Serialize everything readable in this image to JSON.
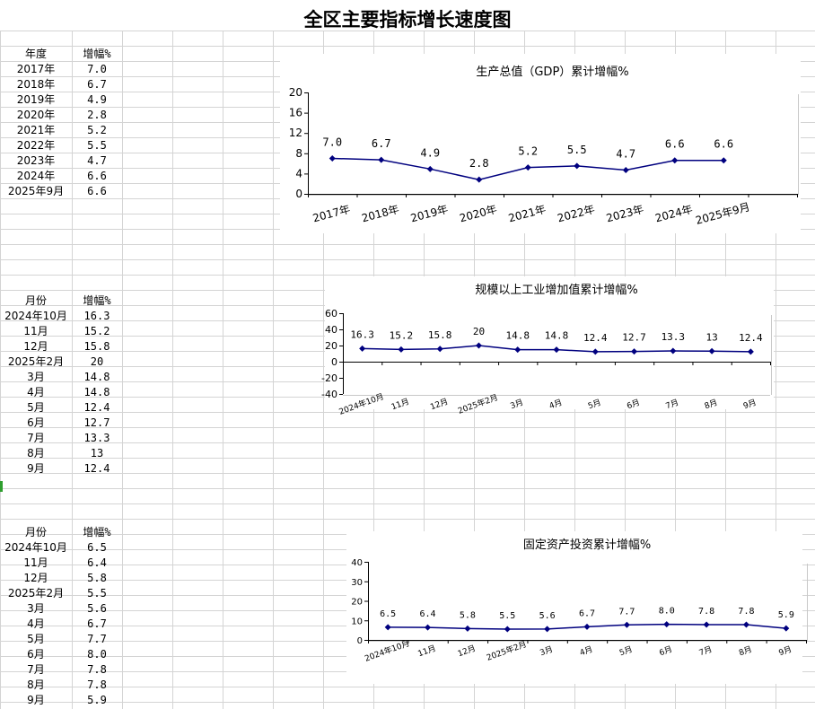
{
  "sheet": {
    "title": "全区主要指标增长速度图"
  },
  "table1": {
    "header": [
      "年度",
      "增幅%"
    ],
    "rows": [
      [
        "2017年",
        "7.0"
      ],
      [
        "2018年",
        "6.7"
      ],
      [
        "2019年",
        "4.9"
      ],
      [
        "2020年",
        "2.8"
      ],
      [
        "2021年",
        "5.2"
      ],
      [
        "2022年",
        "5.5"
      ],
      [
        "2023年",
        "4.7"
      ],
      [
        "2024年",
        "6.6"
      ],
      [
        "2025年9月",
        "6.6"
      ]
    ]
  },
  "table2": {
    "header": [
      "月份",
      "增幅%"
    ],
    "rows": [
      [
        "2024年10月",
        "16.3"
      ],
      [
        "11月",
        "15.2"
      ],
      [
        "12月",
        "15.8"
      ],
      [
        "2025年2月",
        "20"
      ],
      [
        "3月",
        "14.8"
      ],
      [
        "4月",
        "14.8"
      ],
      [
        "5月",
        "12.4"
      ],
      [
        "6月",
        "12.7"
      ],
      [
        "7月",
        "13.3"
      ],
      [
        "8月",
        "13"
      ],
      [
        "9月",
        "12.4"
      ]
    ]
  },
  "table3": {
    "header": [
      "月份",
      "增幅%"
    ],
    "rows": [
      [
        "2024年10月",
        "6.5"
      ],
      [
        "11月",
        "6.4"
      ],
      [
        "12月",
        "5.8"
      ],
      [
        "2025年2月",
        "5.5"
      ],
      [
        "3月",
        "5.6"
      ],
      [
        "4月",
        "6.7"
      ],
      [
        "5月",
        "7.7"
      ],
      [
        "6月",
        "8.0"
      ],
      [
        "7月",
        "7.8"
      ],
      [
        "8月",
        "7.8"
      ],
      [
        "9月",
        "5.9"
      ]
    ]
  },
  "colors": {
    "series": "#00007f",
    "grid": "#d4d4d4",
    "axis": "#000000"
  },
  "chart_data": [
    {
      "type": "line",
      "title": "生产总值（GDP）累计增幅%",
      "categories": [
        "2017年",
        "2018年",
        "2019年",
        "2020年",
        "2021年",
        "2022年",
        "2023年",
        "2024年",
        "2025年9月"
      ],
      "values": [
        7.0,
        6.7,
        4.9,
        2.8,
        5.2,
        5.5,
        4.7,
        6.6,
        6.6
      ],
      "labels": [
        "7.0",
        "6.7",
        "4.9",
        "2.8",
        "5.2",
        "5.5",
        "4.7",
        "6.6",
        "6.6"
      ],
      "yticks": [
        0,
        4,
        8,
        12,
        16,
        20
      ],
      "ylim": [
        0,
        20
      ],
      "slots": 10,
      "grid": false,
      "legend": "none"
    },
    {
      "type": "line",
      "title": "规模以上工业增加值累计增幅%",
      "categories": [
        "2024年10月",
        "11月",
        "12月",
        "2025年2月",
        "3月",
        "4月",
        "5月",
        "6月",
        "7月",
        "8月",
        "9月"
      ],
      "values": [
        16.3,
        15.2,
        15.8,
        20,
        14.8,
        14.8,
        12.4,
        12.7,
        13.3,
        13,
        12.4
      ],
      "labels": [
        "16.3",
        "15.2",
        "15.8",
        "20",
        "14.8",
        "14.8",
        "12.4",
        "12.7",
        "13.3",
        "13",
        "12.4"
      ],
      "yticks": [
        -40,
        -20,
        0,
        20,
        40,
        60
      ],
      "ylim": [
        -40,
        60
      ],
      "slots": 11,
      "grid": false,
      "legend": "none"
    },
    {
      "type": "line",
      "title": "固定资产投资累计增幅%",
      "categories": [
        "2024年10月",
        "11月",
        "12月",
        "2025年2月",
        "3月",
        "4月",
        "5月",
        "6月",
        "7月",
        "8月",
        "9月"
      ],
      "values": [
        6.5,
        6.4,
        5.8,
        5.5,
        5.6,
        6.7,
        7.7,
        8.0,
        7.8,
        7.8,
        5.9
      ],
      "labels": [
        "6.5",
        "6.4",
        "5.8",
        "5.5",
        "5.6",
        "6.7",
        "7.7",
        "8.0",
        "7.8",
        "7.8",
        "5.9"
      ],
      "yticks": [
        0,
        10,
        20,
        30,
        40
      ],
      "ylim": [
        0,
        40
      ],
      "slots": 11,
      "grid": false,
      "legend": "none"
    }
  ]
}
